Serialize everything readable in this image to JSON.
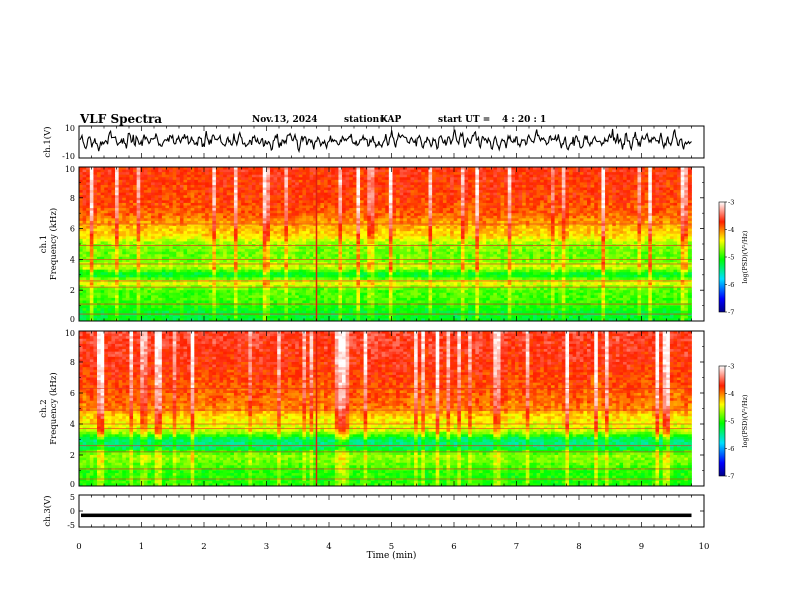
{
  "header": {
    "title": "VLF Spectra",
    "date": "Nov.13, 2024",
    "station_label": "station=",
    "station": "KAP",
    "start_label": "start  UT =",
    "start_ut": "4 : 20 : 1"
  },
  "chart_data": [
    {
      "type": "line",
      "ylabel": "ch.1(V)",
      "ylim": [
        -10,
        10
      ],
      "yticks": [
        "10",
        "-10"
      ],
      "xlim": [
        0,
        10
      ],
      "description_of_values": "noisy waveform varying between about -7 and +10 V over 0-9.8 min"
    },
    {
      "type": "heatmap",
      "ylabel": "ch.1",
      "ylabel2": "Frequency (kHz)",
      "ylim": [
        0,
        10
      ],
      "yticks": [
        "0",
        "2",
        "4",
        "6",
        "8",
        "10"
      ],
      "xlim": [
        0,
        10
      ],
      "data_xmax": 9.8,
      "colorbar": {
        "label": "log(PSD)(V²/Hz)",
        "range": [
          -7,
          -3
        ],
        "ticks": [
          "-3",
          "-4",
          "-5",
          "-6",
          "-7"
        ]
      },
      "band_levels_kHz": [
        {
          "f": 0.5,
          "level": -5.2
        },
        {
          "f": 1.0,
          "level": -5.0
        },
        {
          "f": 1.5,
          "level": -4.9
        },
        {
          "f": 2.0,
          "level": -4.9
        },
        {
          "f": 2.5,
          "level": -4.4
        },
        {
          "f": 3.0,
          "level": -5.3
        },
        {
          "f": 3.5,
          "level": -4.5
        },
        {
          "f": 4.0,
          "level": -4.8
        },
        {
          "f": 4.5,
          "level": -4.8
        },
        {
          "f": 5.0,
          "level": -4.7
        },
        {
          "f": 5.5,
          "level": -4.3
        },
        {
          "f": 6.0,
          "level": -4.2
        },
        {
          "f": 7.0,
          "level": -3.9
        },
        {
          "f": 8.0,
          "level": -3.8
        },
        {
          "f": 10.0,
          "level": -3.7
        }
      ]
    },
    {
      "type": "heatmap",
      "ylabel": "ch.2",
      "ylabel2": "Frequency (kHz)",
      "ylim": [
        0,
        10
      ],
      "yticks": [
        "0",
        "2",
        "4",
        "6",
        "8",
        "10"
      ],
      "xlim": [
        0,
        10
      ],
      "data_xmax": 9.8,
      "colorbar": {
        "label": "log(PSD)(V²/Hz)",
        "range": [
          -7,
          -3
        ],
        "ticks": [
          "-3",
          "-4",
          "-5",
          "-6",
          "-7"
        ]
      },
      "band_levels_kHz": [
        {
          "f": 0.5,
          "level": -5.0
        },
        {
          "f": 1.0,
          "level": -5.0
        },
        {
          "f": 1.5,
          "level": -4.8
        },
        {
          "f": 2.0,
          "level": -4.7
        },
        {
          "f": 2.5,
          "level": -5.4
        },
        {
          "f": 3.0,
          "level": -5.4
        },
        {
          "f": 3.5,
          "level": -4.6
        },
        {
          "f": 4.0,
          "level": -4.4
        },
        {
          "f": 4.5,
          "level": -4.3
        },
        {
          "f": 5.0,
          "level": -4.0
        },
        {
          "f": 6.0,
          "level": -3.9
        },
        {
          "f": 8.0,
          "level": -3.7
        },
        {
          "f": 10.0,
          "level": -3.6
        }
      ]
    },
    {
      "type": "line",
      "ylabel": "ch.3(V)",
      "ylim": [
        -5,
        5
      ],
      "yticks": [
        "5",
        "0",
        "-5"
      ],
      "xlim": [
        0,
        10
      ],
      "xlabel": "Time (min)",
      "xticks": [
        "0",
        "1",
        "2",
        "3",
        "4",
        "5",
        "6",
        "7",
        "8",
        "9",
        "10"
      ],
      "description_of_values": "narrow band oscillating around -1.3 V over 0-9.8 min"
    }
  ]
}
